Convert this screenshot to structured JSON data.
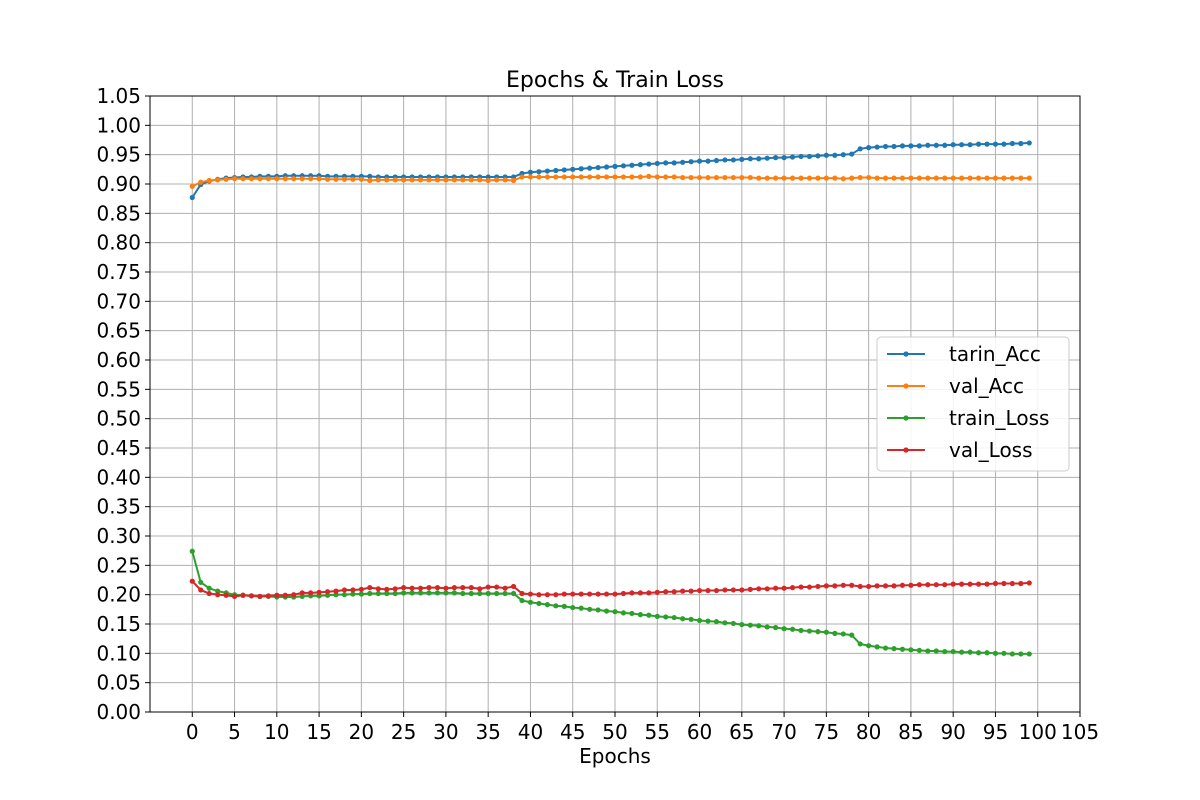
{
  "chart_data": {
    "type": "line",
    "title": "Epochs & Train Loss",
    "xlabel": "Epochs",
    "ylabel": "",
    "xlim": [
      -5,
      105
    ],
    "ylim": [
      0,
      1.05
    ],
    "x_ticks": [
      0,
      5,
      10,
      15,
      20,
      25,
      30,
      35,
      40,
      45,
      50,
      55,
      60,
      65,
      70,
      75,
      80,
      85,
      90,
      95,
      100,
      105
    ],
    "x_tick_labels": [
      "0",
      "5",
      "10",
      "15",
      "20",
      "25",
      "30",
      "35",
      "40",
      "45",
      "50",
      "55",
      "60",
      "65",
      "70",
      "75",
      "80",
      "85",
      "90",
      "95",
      "100",
      "105"
    ],
    "y_ticks": [
      0,
      0.05,
      0.1,
      0.15,
      0.2,
      0.25,
      0.3,
      0.35,
      0.4,
      0.45,
      0.5,
      0.55,
      0.6,
      0.65,
      0.7,
      0.75,
      0.8,
      0.85,
      0.9,
      0.95,
      1.0,
      1.05
    ],
    "y_tick_labels": [
      "0.00",
      "0.05",
      "0.10",
      "0.15",
      "0.20",
      "0.25",
      "0.30",
      "0.35",
      "0.40",
      "0.45",
      "0.50",
      "0.55",
      "0.60",
      "0.65",
      "0.70",
      "0.75",
      "0.80",
      "0.85",
      "0.90",
      "0.95",
      "1.00",
      "1.05"
    ],
    "grid": true,
    "legend_position": "center-right",
    "x": [
      0,
      1,
      2,
      3,
      4,
      5,
      6,
      7,
      8,
      9,
      10,
      11,
      12,
      13,
      14,
      15,
      16,
      17,
      18,
      19,
      20,
      21,
      22,
      23,
      24,
      25,
      26,
      27,
      28,
      29,
      30,
      31,
      32,
      33,
      34,
      35,
      36,
      37,
      38,
      39,
      40,
      41,
      42,
      43,
      44,
      45,
      46,
      47,
      48,
      49,
      50,
      51,
      52,
      53,
      54,
      55,
      56,
      57,
      58,
      59,
      60,
      61,
      62,
      63,
      64,
      65,
      66,
      67,
      68,
      69,
      70,
      71,
      72,
      73,
      74,
      75,
      76,
      77,
      78,
      79,
      80,
      81,
      82,
      83,
      84,
      85,
      86,
      87,
      88,
      89,
      90,
      91,
      92,
      93,
      94,
      95,
      96,
      97,
      98,
      99
    ],
    "series": [
      {
        "name": "tarin_Acc",
        "color": "#1f77b4",
        "values": [
          0.877,
          0.899,
          0.905,
          0.908,
          0.91,
          0.911,
          0.912,
          0.912,
          0.913,
          0.913,
          0.913,
          0.914,
          0.914,
          0.914,
          0.914,
          0.914,
          0.913,
          0.913,
          0.913,
          0.913,
          0.913,
          0.913,
          0.912,
          0.912,
          0.912,
          0.912,
          0.912,
          0.912,
          0.912,
          0.912,
          0.912,
          0.912,
          0.912,
          0.912,
          0.912,
          0.912,
          0.912,
          0.912,
          0.912,
          0.918,
          0.92,
          0.921,
          0.922,
          0.923,
          0.924,
          0.925,
          0.926,
          0.927,
          0.928,
          0.929,
          0.93,
          0.931,
          0.932,
          0.933,
          0.934,
          0.935,
          0.936,
          0.936,
          0.937,
          0.938,
          0.939,
          0.939,
          0.94,
          0.941,
          0.941,
          0.942,
          0.943,
          0.943,
          0.944,
          0.945,
          0.945,
          0.946,
          0.947,
          0.947,
          0.948,
          0.949,
          0.949,
          0.95,
          0.951,
          0.96,
          0.962,
          0.963,
          0.964,
          0.964,
          0.965,
          0.965,
          0.965,
          0.966,
          0.966,
          0.966,
          0.967,
          0.967,
          0.967,
          0.968,
          0.968,
          0.968,
          0.968,
          0.969,
          0.969,
          0.97
        ]
      },
      {
        "name": "val_Acc",
        "color": "#ff7f0e",
        "values": [
          0.896,
          0.903,
          0.906,
          0.907,
          0.908,
          0.909,
          0.909,
          0.909,
          0.909,
          0.909,
          0.909,
          0.909,
          0.909,
          0.909,
          0.909,
          0.909,
          0.908,
          0.908,
          0.908,
          0.908,
          0.908,
          0.906,
          0.907,
          0.907,
          0.907,
          0.907,
          0.907,
          0.907,
          0.907,
          0.907,
          0.907,
          0.907,
          0.907,
          0.907,
          0.907,
          0.906,
          0.907,
          0.907,
          0.906,
          0.912,
          0.912,
          0.912,
          0.912,
          0.912,
          0.912,
          0.912,
          0.912,
          0.912,
          0.912,
          0.912,
          0.912,
          0.912,
          0.912,
          0.912,
          0.913,
          0.912,
          0.912,
          0.912,
          0.911,
          0.911,
          0.911,
          0.911,
          0.911,
          0.911,
          0.911,
          0.911,
          0.911,
          0.91,
          0.91,
          0.91,
          0.91,
          0.91,
          0.91,
          0.91,
          0.91,
          0.91,
          0.91,
          0.909,
          0.91,
          0.911,
          0.911,
          0.91,
          0.91,
          0.91,
          0.91,
          0.91,
          0.91,
          0.91,
          0.91,
          0.91,
          0.91,
          0.91,
          0.91,
          0.91,
          0.91,
          0.91,
          0.91,
          0.91,
          0.91,
          0.91
        ]
      },
      {
        "name": "train_Loss",
        "color": "#2ca02c",
        "values": [
          0.274,
          0.221,
          0.211,
          0.206,
          0.203,
          0.2,
          0.199,
          0.198,
          0.197,
          0.197,
          0.196,
          0.196,
          0.196,
          0.197,
          0.198,
          0.198,
          0.199,
          0.2,
          0.2,
          0.201,
          0.201,
          0.202,
          0.202,
          0.202,
          0.202,
          0.203,
          0.203,
          0.203,
          0.203,
          0.203,
          0.203,
          0.203,
          0.202,
          0.202,
          0.202,
          0.202,
          0.202,
          0.202,
          0.202,
          0.19,
          0.187,
          0.185,
          0.183,
          0.181,
          0.18,
          0.178,
          0.177,
          0.175,
          0.174,
          0.172,
          0.171,
          0.169,
          0.168,
          0.166,
          0.165,
          0.163,
          0.162,
          0.161,
          0.159,
          0.158,
          0.156,
          0.155,
          0.154,
          0.152,
          0.151,
          0.149,
          0.148,
          0.147,
          0.145,
          0.144,
          0.142,
          0.141,
          0.139,
          0.138,
          0.137,
          0.136,
          0.134,
          0.133,
          0.131,
          0.116,
          0.113,
          0.111,
          0.109,
          0.108,
          0.107,
          0.106,
          0.105,
          0.104,
          0.104,
          0.103,
          0.103,
          0.102,
          0.102,
          0.101,
          0.101,
          0.1,
          0.1,
          0.099,
          0.099,
          0.099
        ]
      },
      {
        "name": "val_Loss",
        "color": "#d62728",
        "values": [
          0.223,
          0.208,
          0.202,
          0.2,
          0.199,
          0.197,
          0.199,
          0.198,
          0.197,
          0.198,
          0.199,
          0.199,
          0.2,
          0.203,
          0.203,
          0.204,
          0.205,
          0.206,
          0.208,
          0.208,
          0.209,
          0.212,
          0.21,
          0.209,
          0.21,
          0.212,
          0.211,
          0.211,
          0.212,
          0.212,
          0.211,
          0.212,
          0.212,
          0.212,
          0.21,
          0.213,
          0.213,
          0.211,
          0.214,
          0.202,
          0.201,
          0.2,
          0.2,
          0.2,
          0.201,
          0.201,
          0.201,
          0.201,
          0.201,
          0.201,
          0.201,
          0.202,
          0.203,
          0.203,
          0.203,
          0.204,
          0.205,
          0.205,
          0.206,
          0.206,
          0.207,
          0.207,
          0.207,
          0.208,
          0.208,
          0.208,
          0.209,
          0.21,
          0.21,
          0.211,
          0.211,
          0.212,
          0.213,
          0.213,
          0.214,
          0.215,
          0.215,
          0.216,
          0.216,
          0.214,
          0.214,
          0.215,
          0.215,
          0.215,
          0.216,
          0.216,
          0.217,
          0.217,
          0.217,
          0.217,
          0.218,
          0.218,
          0.218,
          0.218,
          0.218,
          0.219,
          0.219,
          0.219,
          0.219,
          0.22
        ]
      }
    ]
  }
}
